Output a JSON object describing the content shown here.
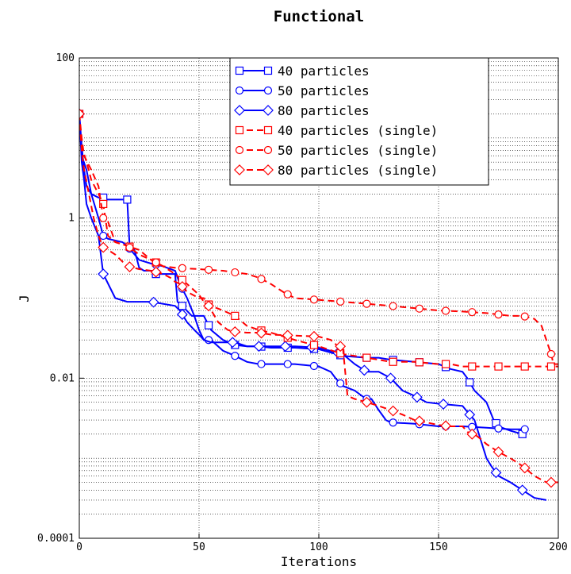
{
  "chart_data": {
    "type": "line",
    "title": "Functional",
    "xlabel": "Iterations",
    "ylabel": "J",
    "xlim": [
      0,
      200
    ],
    "ylim": [
      0.0001,
      100
    ],
    "yscale": "log",
    "grid": true,
    "legend_position": "top-right",
    "x_ticks": [
      0,
      50,
      100,
      150,
      200
    ],
    "x_tick_labels": [
      "0",
      "50",
      "100",
      "150",
      "200"
    ],
    "y_ticks": [
      0.0001,
      0.01,
      1,
      100
    ],
    "y_tick_labels": [
      "0.0001",
      "0.01",
      "1",
      "100"
    ],
    "series": [
      {
        "name": "40 particles",
        "color": "#0000ff",
        "dash": "solid",
        "marker": "square",
        "points": [
          [
            0,
            20
          ],
          [
            1,
            8
          ],
          [
            2,
            4
          ],
          [
            3,
            2.5
          ],
          [
            5,
            2
          ],
          [
            8,
            1.8
          ],
          [
            10,
            1.8
          ],
          [
            11,
            1.7
          ],
          [
            15,
            1.7
          ],
          [
            20,
            1.7
          ],
          [
            21,
            0.45
          ],
          [
            23,
            0.4
          ],
          [
            25,
            0.24
          ],
          [
            27,
            0.22
          ],
          [
            30,
            0.22
          ],
          [
            31,
            0.2
          ],
          [
            33,
            0.2
          ],
          [
            38,
            0.2
          ],
          [
            40,
            0.2
          ],
          [
            41,
            0.09
          ],
          [
            43,
            0.08
          ],
          [
            47,
            0.06
          ],
          [
            52,
            0.06
          ],
          [
            55,
            0.04
          ],
          [
            60,
            0.03
          ],
          [
            65,
            0.026
          ],
          [
            70,
            0.025
          ],
          [
            75,
            0.025
          ],
          [
            80,
            0.024
          ],
          [
            90,
            0.024
          ],
          [
            100,
            0.023
          ],
          [
            110,
            0.019
          ],
          [
            120,
            0.018
          ],
          [
            125,
            0.018
          ],
          [
            130,
            0.017
          ],
          [
            140,
            0.016
          ],
          [
            150,
            0.015
          ],
          [
            155,
            0.013
          ],
          [
            160,
            0.012
          ],
          [
            162,
            0.01
          ],
          [
            165,
            0.007
          ],
          [
            170,
            0.005
          ],
          [
            173,
            0.003
          ],
          [
            175,
            0.0025
          ],
          [
            180,
            0.0022
          ],
          [
            185,
            0.002
          ]
        ],
        "marker_x": [
          10,
          20,
          32,
          43,
          54,
          65,
          76,
          87,
          98,
          109,
          120,
          131,
          142,
          153,
          163,
          174,
          185
        ]
      },
      {
        "name": "50 particles",
        "color": "#0000ff",
        "dash": "solid",
        "marker": "circle",
        "points": [
          [
            0,
            20
          ],
          [
            1,
            6
          ],
          [
            3,
            4
          ],
          [
            5,
            2
          ],
          [
            8,
            1
          ],
          [
            10,
            0.6
          ],
          [
            12,
            0.55
          ],
          [
            18,
            0.5
          ],
          [
            20,
            0.45
          ],
          [
            25,
            0.3
          ],
          [
            30,
            0.27
          ],
          [
            35,
            0.25
          ],
          [
            40,
            0.22
          ],
          [
            42,
            0.15
          ],
          [
            45,
            0.1
          ],
          [
            48,
            0.06
          ],
          [
            50,
            0.04
          ],
          [
            52,
            0.03
          ],
          [
            55,
            0.03
          ],
          [
            60,
            0.022
          ],
          [
            65,
            0.019
          ],
          [
            70,
            0.016
          ],
          [
            75,
            0.015
          ],
          [
            80,
            0.015
          ],
          [
            90,
            0.015
          ],
          [
            100,
            0.014
          ],
          [
            105,
            0.012
          ],
          [
            107,
            0.01
          ],
          [
            110,
            0.008
          ],
          [
            115,
            0.007
          ],
          [
            118,
            0.006
          ],
          [
            120,
            0.0055
          ],
          [
            122,
            0.0055
          ],
          [
            125,
            0.004
          ],
          [
            128,
            0.003
          ],
          [
            130,
            0.0028
          ],
          [
            140,
            0.0027
          ],
          [
            150,
            0.0025
          ],
          [
            160,
            0.0025
          ],
          [
            170,
            0.0024
          ],
          [
            180,
            0.0023
          ],
          [
            185,
            0.0023
          ]
        ],
        "marker_x": [
          10,
          21,
          32,
          43,
          54,
          65,
          76,
          87,
          98,
          109,
          120,
          131,
          142,
          153,
          164,
          175,
          186
        ]
      },
      {
        "name": "80 particles",
        "color": "#0000ff",
        "dash": "solid",
        "marker": "diamond",
        "points": [
          [
            0,
            20
          ],
          [
            1,
            5
          ],
          [
            2,
            3
          ],
          [
            3,
            1.5
          ],
          [
            5,
            1
          ],
          [
            8,
            0.6
          ],
          [
            10,
            0.2
          ],
          [
            15,
            0.1
          ],
          [
            20,
            0.09
          ],
          [
            30,
            0.09
          ],
          [
            40,
            0.08
          ],
          [
            42,
            0.07
          ],
          [
            45,
            0.05
          ],
          [
            48,
            0.04
          ],
          [
            50,
            0.035
          ],
          [
            52,
            0.03
          ],
          [
            55,
            0.028
          ],
          [
            65,
            0.028
          ],
          [
            70,
            0.025
          ],
          [
            75,
            0.025
          ],
          [
            90,
            0.025
          ],
          [
            100,
            0.024
          ],
          [
            110,
            0.02
          ],
          [
            115,
            0.015
          ],
          [
            120,
            0.012
          ],
          [
            125,
            0.012
          ],
          [
            130,
            0.01
          ],
          [
            135,
            0.007
          ],
          [
            140,
            0.006
          ],
          [
            145,
            0.005
          ],
          [
            150,
            0.0048
          ],
          [
            160,
            0.0045
          ],
          [
            163,
            0.0035
          ],
          [
            165,
            0.003
          ],
          [
            170,
            0.001
          ],
          [
            172,
            0.0008
          ],
          [
            175,
            0.0006
          ],
          [
            180,
            0.0005
          ],
          [
            185,
            0.0004
          ],
          [
            190,
            0.00032
          ],
          [
            195,
            0.0003
          ]
        ],
        "marker_x": [
          10,
          31,
          43,
          64,
          75,
          86,
          97,
          108,
          119,
          130,
          141,
          152,
          163,
          174,
          185
        ]
      },
      {
        "name": "40 particles (single)",
        "color": "#ff0000",
        "dash": "dashed",
        "marker": "square",
        "points": [
          [
            0,
            20
          ],
          [
            1,
            8
          ],
          [
            3,
            5
          ],
          [
            5,
            3
          ],
          [
            8,
            2
          ],
          [
            10,
            1.5
          ],
          [
            12,
            0.6
          ],
          [
            15,
            0.5
          ],
          [
            20,
            0.45
          ],
          [
            25,
            0.4
          ],
          [
            30,
            0.3
          ],
          [
            35,
            0.25
          ],
          [
            40,
            0.2
          ],
          [
            45,
            0.15
          ],
          [
            50,
            0.11
          ],
          [
            52,
            0.09
          ],
          [
            55,
            0.08
          ],
          [
            60,
            0.07
          ],
          [
            65,
            0.06
          ],
          [
            70,
            0.045
          ],
          [
            75,
            0.04
          ],
          [
            80,
            0.037
          ],
          [
            90,
            0.03
          ],
          [
            100,
            0.025
          ],
          [
            110,
            0.02
          ],
          [
            120,
            0.018
          ],
          [
            130,
            0.016
          ],
          [
            140,
            0.016
          ],
          [
            150,
            0.015
          ],
          [
            155,
            0.015
          ],
          [
            160,
            0.014
          ],
          [
            170,
            0.014
          ],
          [
            180,
            0.014
          ],
          [
            190,
            0.014
          ],
          [
            200,
            0.014
          ]
        ],
        "marker_x": [
          10,
          21,
          32,
          43,
          54,
          65,
          76,
          87,
          98,
          109,
          120,
          131,
          142,
          153,
          164,
          175,
          186,
          197
        ]
      },
      {
        "name": "50 particles (single)",
        "color": "#ff0000",
        "dash": "dashed",
        "marker": "circle",
        "points": [
          [
            0,
            20
          ],
          [
            1,
            10
          ],
          [
            2,
            6
          ],
          [
            5,
            4
          ],
          [
            8,
            2.5
          ],
          [
            10,
            1
          ],
          [
            12,
            0.9
          ],
          [
            15,
            0.5
          ],
          [
            20,
            0.45
          ],
          [
            25,
            0.35
          ],
          [
            30,
            0.3
          ],
          [
            35,
            0.25
          ],
          [
            40,
            0.24
          ],
          [
            50,
            0.23
          ],
          [
            60,
            0.22
          ],
          [
            70,
            0.2
          ],
          [
            75,
            0.18
          ],
          [
            80,
            0.15
          ],
          [
            85,
            0.12
          ],
          [
            90,
            0.1
          ],
          [
            100,
            0.095
          ],
          [
            110,
            0.09
          ],
          [
            120,
            0.085
          ],
          [
            130,
            0.08
          ],
          [
            140,
            0.075
          ],
          [
            150,
            0.07
          ],
          [
            160,
            0.068
          ],
          [
            170,
            0.065
          ],
          [
            180,
            0.06
          ],
          [
            185,
            0.06
          ],
          [
            190,
            0.055
          ],
          [
            193,
            0.045
          ],
          [
            195,
            0.03
          ],
          [
            197,
            0.02
          ],
          [
            198,
            0.015
          ],
          [
            200,
            0.015
          ]
        ],
        "marker_x": [
          10,
          21,
          32,
          43,
          54,
          65,
          76,
          87,
          98,
          109,
          120,
          131,
          142,
          153,
          164,
          175,
          186,
          197
        ]
      },
      {
        "name": "80 particles (single)",
        "color": "#ff0000",
        "dash": "dashed",
        "marker": "diamond",
        "points": [
          [
            0,
            20
          ],
          [
            1,
            7
          ],
          [
            2,
            4
          ],
          [
            4,
            2
          ],
          [
            6,
            1
          ],
          [
            8,
            0.6
          ],
          [
            10,
            0.43
          ],
          [
            12,
            0.4
          ],
          [
            15,
            0.35
          ],
          [
            20,
            0.25
          ],
          [
            25,
            0.23
          ],
          [
            30,
            0.22
          ],
          [
            35,
            0.2
          ],
          [
            38,
            0.18
          ],
          [
            40,
            0.16
          ],
          [
            42,
            0.15
          ],
          [
            45,
            0.12
          ],
          [
            50,
            0.1
          ],
          [
            52,
            0.1
          ],
          [
            54,
            0.08
          ],
          [
            58,
            0.05
          ],
          [
            62,
            0.04
          ],
          [
            65,
            0.038
          ],
          [
            70,
            0.037
          ],
          [
            75,
            0.037
          ],
          [
            80,
            0.035
          ],
          [
            90,
            0.034
          ],
          [
            100,
            0.033
          ],
          [
            105,
            0.03
          ],
          [
            108,
            0.025
          ],
          [
            110,
            0.025
          ],
          [
            112,
            0.006
          ],
          [
            115,
            0.0055
          ],
          [
            120,
            0.005
          ],
          [
            125,
            0.0045
          ],
          [
            130,
            0.004
          ],
          [
            135,
            0.0035
          ],
          [
            140,
            0.003
          ],
          [
            145,
            0.0028
          ],
          [
            150,
            0.0026
          ],
          [
            155,
            0.0025
          ],
          [
            160,
            0.0025
          ],
          [
            163,
            0.002
          ],
          [
            165,
            0.002
          ],
          [
            168,
            0.0017
          ],
          [
            170,
            0.0015
          ],
          [
            175,
            0.0012
          ],
          [
            180,
            0.001
          ],
          [
            185,
            0.0008
          ],
          [
            190,
            0.0006
          ],
          [
            195,
            0.0005
          ],
          [
            200,
            0.0005
          ]
        ],
        "marker_x": [
          10,
          21,
          32,
          43,
          54,
          65,
          76,
          87,
          98,
          109,
          120,
          131,
          142,
          153,
          164,
          175,
          186,
          197
        ]
      }
    ]
  }
}
